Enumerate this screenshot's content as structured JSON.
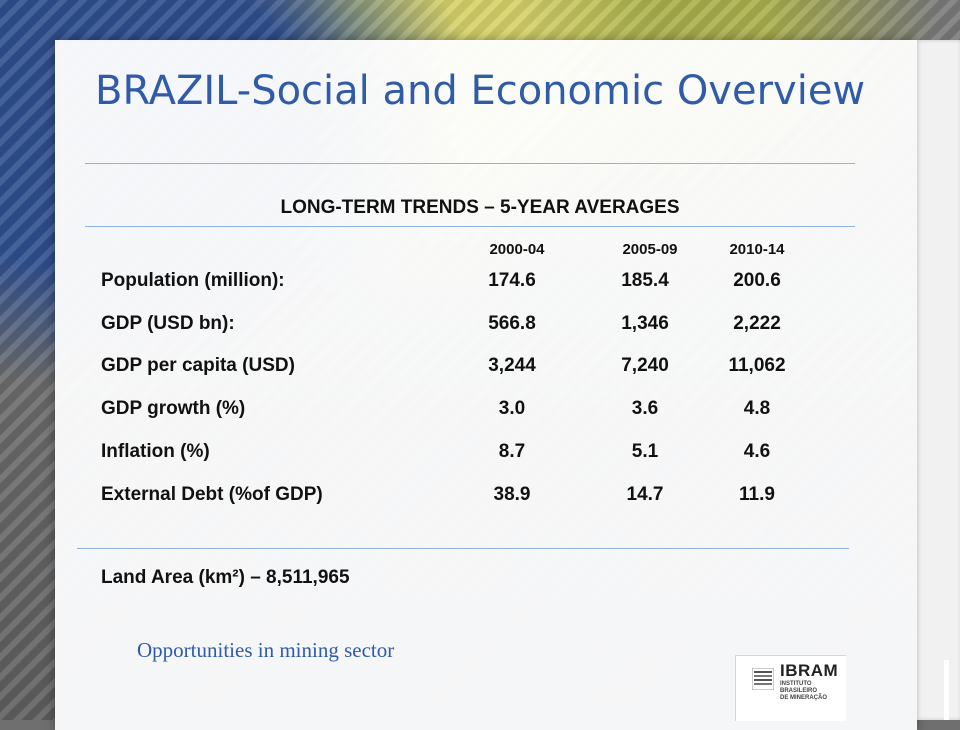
{
  "slide": {
    "title": "BRAZIL-Social and Economic Overview",
    "subtitle": "LONG-TERM TRENDS – 5-YEAR AVERAGES",
    "columns": [
      "2000-04",
      "2005-09",
      "2010-14"
    ],
    "rows": [
      {
        "label": "Population (million):",
        "values": [
          "174.6",
          "185.4",
          "200.6"
        ]
      },
      {
        "label": "GDP (USD bn):",
        "values": [
          "566.8",
          "1,346",
          "2,222"
        ]
      },
      {
        "label": "GDP per capita (USD)",
        "values": [
          "3,244",
          "7,240",
          "11,062"
        ]
      },
      {
        "label": "GDP growth (%)",
        "values": [
          "3.0",
          "3.6",
          "4.8"
        ]
      },
      {
        "label": "Inflation (%)",
        "values": [
          "8.7",
          "5.1",
          "4.6"
        ]
      },
      {
        "label": "External Debt (%of GDP)",
        "values": [
          "38.9",
          "14.7",
          "11.9"
        ]
      }
    ],
    "land_area": "Land Area (km²) – 8,511,965",
    "footer": "Opportunities in mining sector"
  },
  "logo": {
    "name": "IBRAM",
    "subtitle_line1": "INSTITUTO BRASILEIRO",
    "subtitle_line2": "DE MINERAÇÃO",
    "icon": "ibram-stripes-icon"
  },
  "colors": {
    "title": "#2f5ba9",
    "rule": "#8db3e2",
    "text": "#111111"
  }
}
